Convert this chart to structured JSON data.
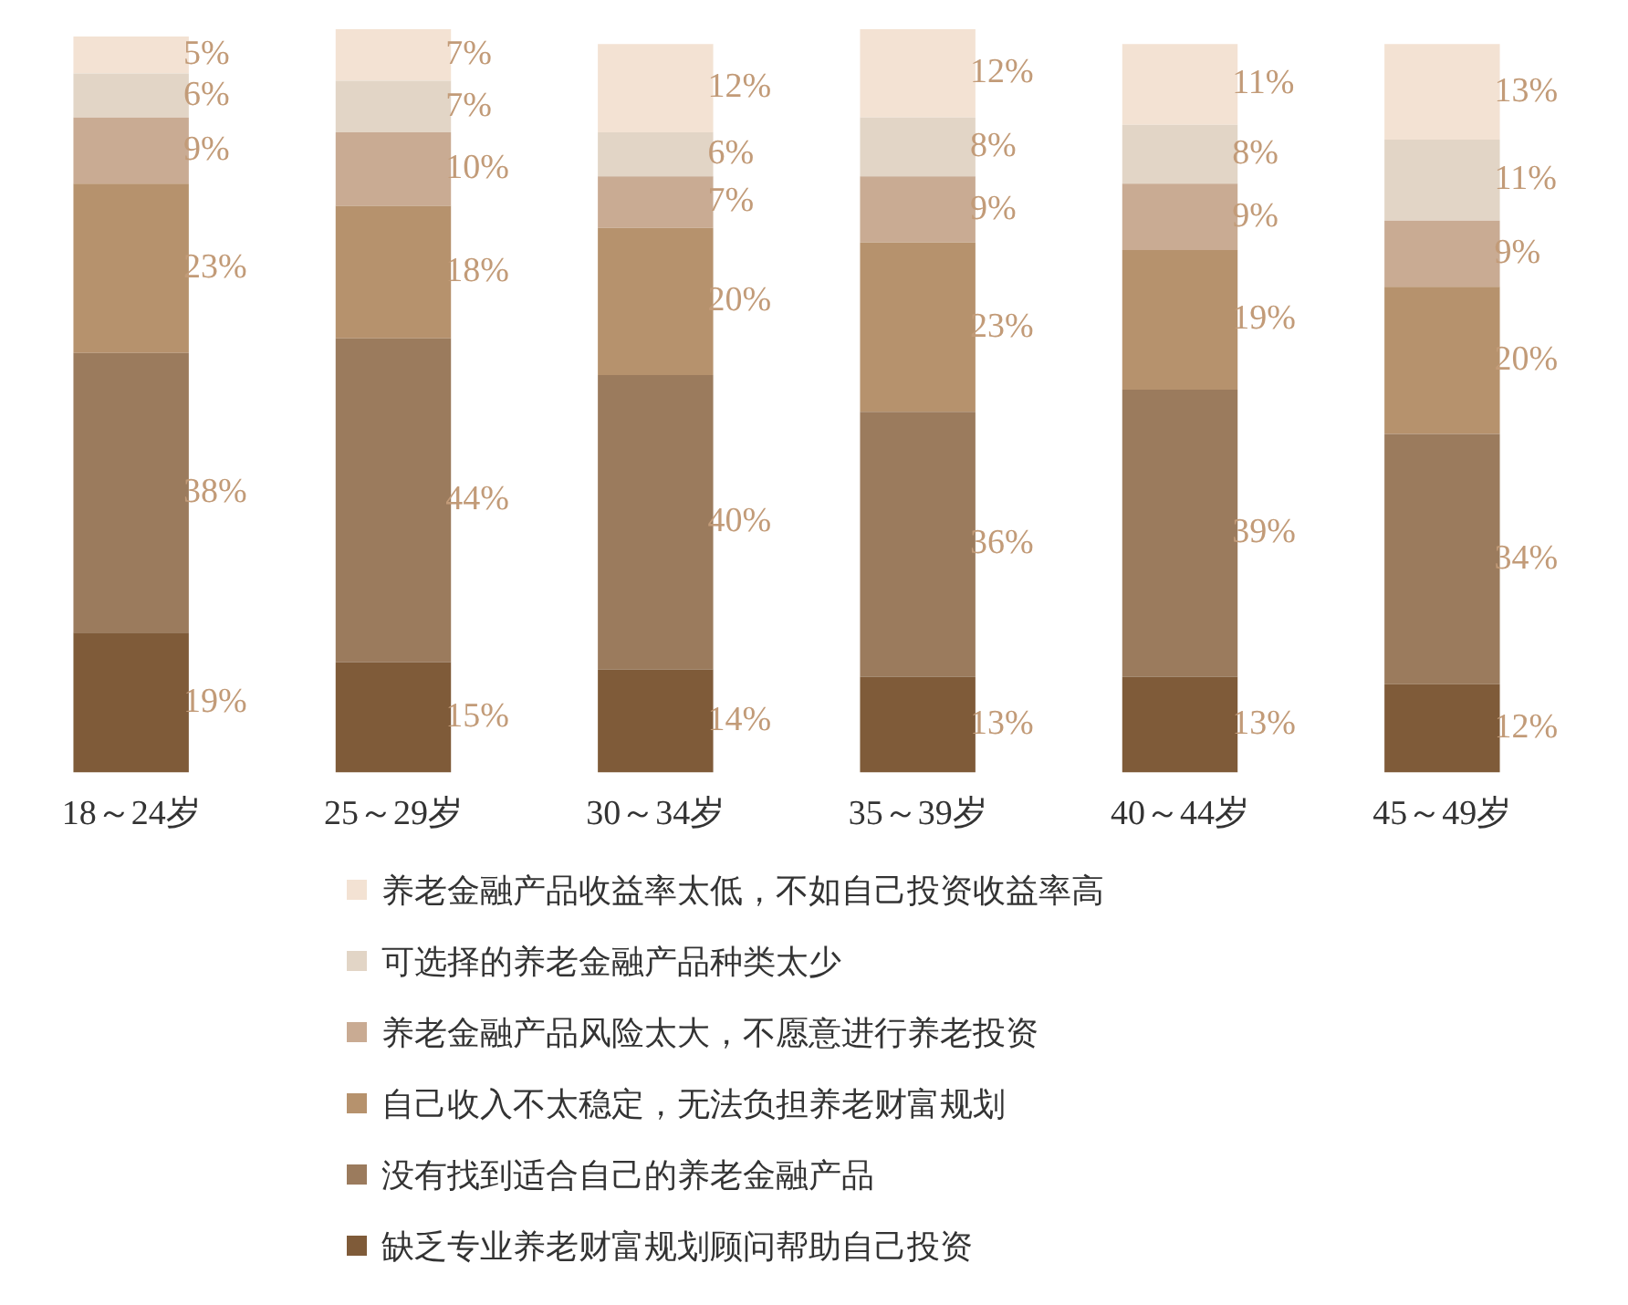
{
  "chart_data": {
    "type": "bar",
    "stacked": true,
    "data_labels": true,
    "legend": "bottom",
    "grid": false,
    "tick_labels": "x",
    "categories": [
      "18～24岁",
      "25～29岁",
      "30～34岁",
      "35～39岁",
      "40～44岁",
      "45～49岁"
    ],
    "series": [
      {
        "name": "缺乏专业养老财富规划顾问帮助自己投资",
        "color": "#7f5b39",
        "values": [
          19,
          15,
          14,
          13,
          13,
          12
        ],
        "value_labels": [
          "19%",
          "15%",
          "14%",
          "13%",
          "13%",
          "12%"
        ]
      },
      {
        "name": "没有找到适合自己的养老金融产品",
        "color": "#9b7b5d",
        "values": [
          38,
          44,
          40,
          36,
          39,
          34
        ],
        "value_labels": [
          "38%",
          "44%",
          "40%",
          "36%",
          "39%",
          "34%"
        ]
      },
      {
        "name": "自己收入不太稳定，无法负担养老财富规划",
        "color": "#b6926d",
        "values": [
          23,
          18,
          20,
          23,
          19,
          20
        ],
        "value_labels": [
          "23%",
          "18%",
          "20%",
          "23%",
          "19%",
          "20%"
        ]
      },
      {
        "name": "养老金融产品风险太大，不愿意进行养老投资",
        "color": "#c9ab93",
        "values": [
          9,
          10,
          7,
          9,
          9,
          9
        ],
        "value_labels": [
          "9%",
          "10%",
          "7%",
          "9%",
          "9%",
          "9%"
        ]
      },
      {
        "name": "可选择的养老金融产品种类太少",
        "color": "#e2d5c6",
        "values": [
          6,
          7,
          6,
          8,
          8,
          11
        ],
        "value_labels": [
          "6%",
          "7%",
          "6%",
          "8%",
          "8%",
          "11%"
        ]
      },
      {
        "name": "养老金融产品收益率太低，不如自己投资收益率高",
        "color": "#f3e2d3",
        "values": [
          5,
          7,
          12,
          12,
          11,
          13
        ],
        "value_labels": [
          "5%",
          "7%",
          "12%",
          "12%",
          "11%",
          "13%"
        ]
      }
    ]
  }
}
